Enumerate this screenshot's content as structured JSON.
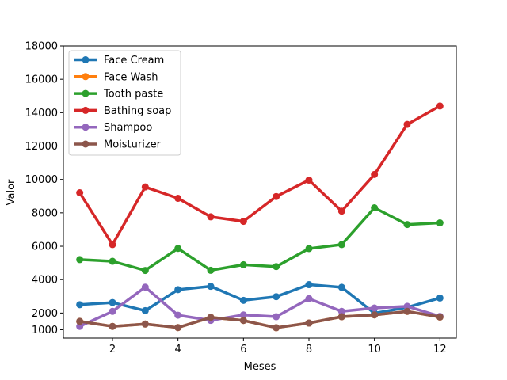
{
  "chart_data": {
    "type": "line",
    "xlabel": "Meses",
    "ylabel": "Valor",
    "x": [
      1,
      2,
      3,
      4,
      5,
      6,
      7,
      8,
      9,
      10,
      11,
      12
    ],
    "xlim": [
      0.5,
      12.5
    ],
    "ylim": [
      500,
      18000
    ],
    "xticks": [
      2,
      4,
      6,
      8,
      10,
      12
    ],
    "yticks": [
      1000,
      2000,
      4000,
      6000,
      8000,
      10000,
      12000,
      14000,
      16000,
      18000
    ],
    "grid": false,
    "legend_position": "upper-left",
    "series": [
      {
        "name": "Face Cream",
        "color": "#1f77b4",
        "values": [
          2500,
          2630,
          2140,
          3400,
          3600,
          2760,
          2980,
          3700,
          3540,
          1990,
          2340,
          2900
        ]
      },
      {
        "name": "Face Wash",
        "color": "#ff7f0e",
        "values": [
          1500,
          1200,
          1340,
          1130,
          1740,
          1555,
          1120,
          1400,
          1780,
          1890,
          2100,
          1760
        ]
      },
      {
        "name": "Tooth paste",
        "color": "#2ca02c",
        "values": [
          5200,
          5100,
          4550,
          5870,
          4560,
          4890,
          4780,
          5860,
          6100,
          8300,
          7300,
          7400
        ]
      },
      {
        "name": "Bathing soap",
        "color": "#d62728",
        "values": [
          9200,
          6100,
          9550,
          8870,
          7760,
          7490,
          8980,
          9960,
          8100,
          10300,
          13300,
          14400
        ]
      },
      {
        "name": "Shampoo",
        "color": "#9467bd",
        "values": [
          1200,
          2100,
          3550,
          1870,
          1560,
          1890,
          1780,
          2860,
          2100,
          2300,
          2400,
          1800
        ]
      },
      {
        "name": "Moisturizer",
        "color": "#8c564b",
        "values": [
          1500,
          1200,
          1340,
          1130,
          1740,
          1555,
          1120,
          1400,
          1780,
          1890,
          2100,
          1760
        ]
      }
    ]
  }
}
